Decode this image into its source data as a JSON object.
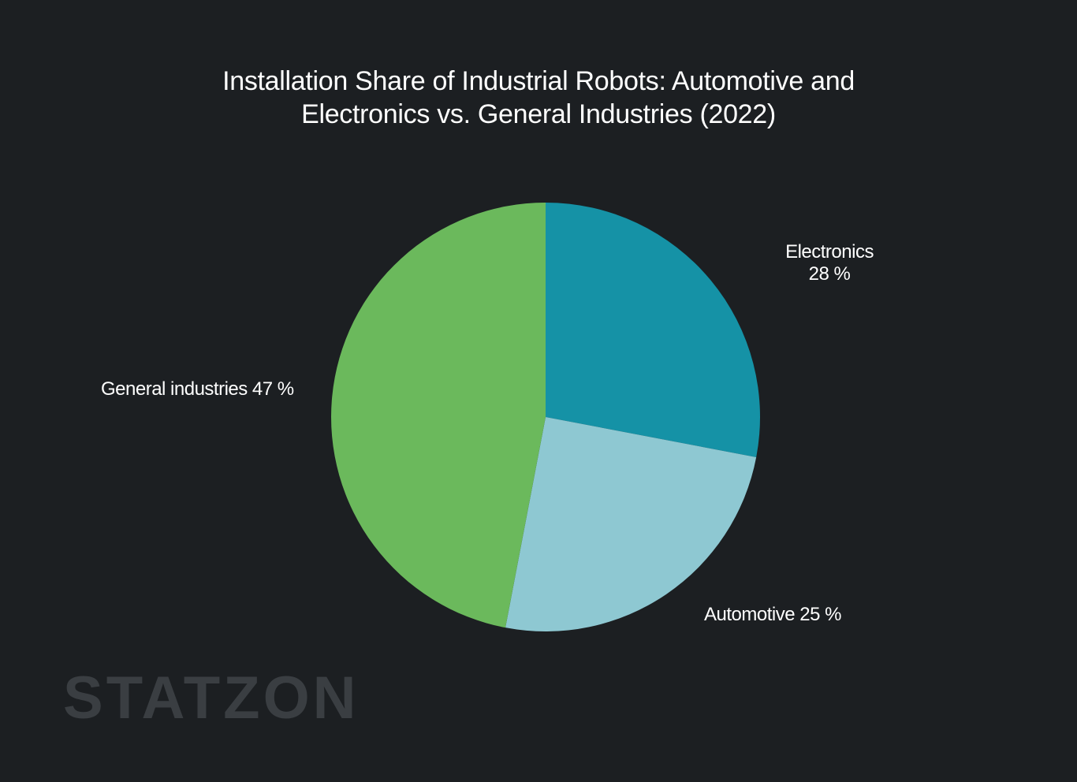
{
  "chart_data": {
    "type": "pie",
    "title_lines": [
      "Installation Share of Industrial Robots: Automotive and",
      "Electronics  vs. General Industries (2022)"
    ],
    "slices": [
      {
        "name": "Electronics",
        "value": 28,
        "label": "28 %",
        "color": "#1592a6"
      },
      {
        "name": "Automotive",
        "value": 25,
        "label": "Automotive 25 %",
        "color": "#8ec8d2"
      },
      {
        "name": "General industries",
        "value": 47,
        "label": "General industries 47 %",
        "color": "#6bb95c"
      }
    ],
    "start_angle": "12 o'clock",
    "direction": "clockwise",
    "legend": "none"
  },
  "watermark": "STATZON"
}
